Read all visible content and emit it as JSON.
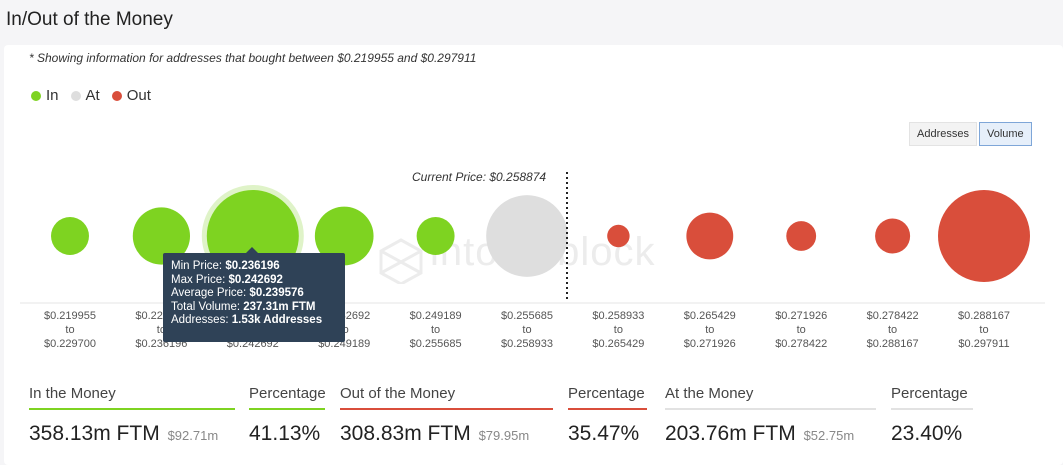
{
  "page": {
    "title": "In/Out of the Money",
    "note": "* Showing information for addresses that bought between $0.219955 and $0.297911",
    "watermark": "intotheblock"
  },
  "legend": [
    {
      "label": "In",
      "color": "#7ed321"
    },
    {
      "label": "At",
      "color": "#dedede"
    },
    {
      "label": "Out",
      "color": "#d94e3b"
    }
  ],
  "toggle": {
    "addresses": "Addresses",
    "volume": "Volume",
    "active": "Volume"
  },
  "current_price": {
    "label": "Current Price: $0.258874"
  },
  "tooltip": {
    "rows": [
      {
        "key": "Min Price:",
        "value": "$0.236196"
      },
      {
        "key": "Max Price:",
        "value": "$0.242692"
      },
      {
        "key": "Average Price:",
        "value": "$0.239576"
      },
      {
        "key": "Total Volume:",
        "value": "237.31m FTM"
      },
      {
        "key": "Addresses:",
        "value": "1.53k Addresses"
      }
    ]
  },
  "chart_data": {
    "type": "bubble",
    "title": "",
    "metric": "Volume",
    "current_price": 0.258874,
    "bins": [
      {
        "from": "$0.219955",
        "to": "$0.229700",
        "status": "in",
        "size": 0.27
      },
      {
        "from": "$0.229700",
        "to": "$0.236196",
        "status": "in",
        "size": 0.53
      },
      {
        "from": "$0.236196",
        "to": "$0.242692",
        "status": "in",
        "size": 1.0
      },
      {
        "from": "$0.242692",
        "to": "$0.249189",
        "status": "in",
        "size": 0.55
      },
      {
        "from": "$0.249189",
        "to": "$0.255685",
        "status": "in",
        "size": 0.27
      },
      {
        "from": "$0.255685",
        "to": "$0.258933",
        "status": "at",
        "size": 0.86
      },
      {
        "from": "$0.258933",
        "to": "$0.265429",
        "status": "out",
        "size": 0.06
      },
      {
        "from": "$0.265429",
        "to": "$0.271926",
        "status": "out",
        "size": 0.39
      },
      {
        "from": "$0.271926",
        "to": "$0.278422",
        "status": "out",
        "size": 0.16
      },
      {
        "from": "$0.278422",
        "to": "$0.288167",
        "status": "out",
        "size": 0.23
      },
      {
        "from": "$0.288167",
        "to": "$0.297911",
        "status": "out",
        "size": 1.0
      }
    ],
    "colors": {
      "in": "#7ed321",
      "at": "#dedede",
      "out": "#d94e3b"
    }
  },
  "summary": [
    {
      "label": "In the Money",
      "value": "358.13m FTM",
      "usd": "$92.71m",
      "color": "#7ed321"
    },
    {
      "label": "Percentage",
      "value": "41.13%",
      "color": "#7ed321"
    },
    {
      "label": "Out of the Money",
      "value": "308.83m FTM",
      "usd": "$79.95m",
      "color": "#d94e3b"
    },
    {
      "label": "Percentage",
      "value": "35.47%",
      "color": "#d94e3b"
    },
    {
      "label": "At the Money",
      "value": "203.76m FTM",
      "usd": "$52.75m",
      "color": "#e2e2e2"
    },
    {
      "label": "Percentage",
      "value": "23.40%",
      "color": "#e2e2e2"
    }
  ]
}
